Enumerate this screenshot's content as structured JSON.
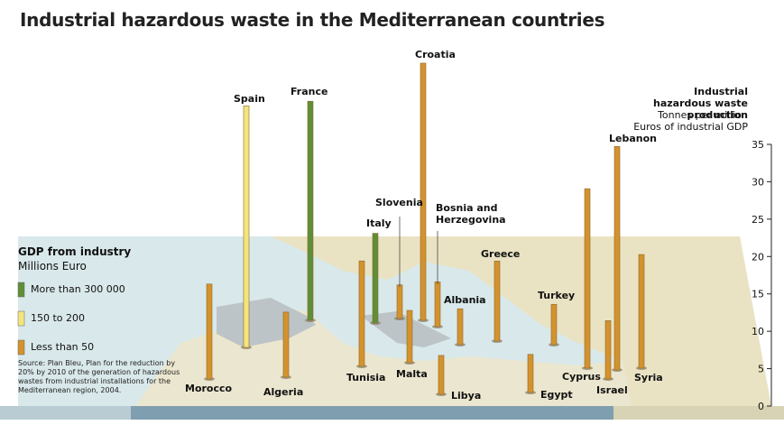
{
  "chart_data": {
    "type": "bar",
    "title": "Industrial hazardous waste in the Mediterranean countries",
    "y_axis_title": "Industrial hazardous waste production",
    "y_axis_subtitle": "Tonnes per million Euros of industrial GDP",
    "categories": [
      "Morocco",
      "Algeria",
      "Spain",
      "France",
      "Tunisia",
      "Italy",
      "Malta",
      "Slovenia",
      "Croatia",
      "Bosnia and Herzegovina",
      "Albania",
      "Greece",
      "Turkey",
      "Cyprus",
      "Lebanon",
      "Israel",
      "Syria",
      "Egypt",
      "Libya"
    ],
    "values": [
      12.7,
      8.7,
      32.3,
      29.3,
      14.1,
      12,
      7,
      4.5,
      34.4,
      6,
      4.8,
      10.7,
      5.4,
      24,
      29.9,
      7.8,
      15.2,
      5.1,
      5.2
    ],
    "colors": [
      "#d4922e",
      "#d4922e",
      "#f3e57e",
      "#5e8f38",
      "#d4922e",
      "#5e8f38",
      "#d4922e",
      "#d4922e",
      "#d4922e",
      "#d4922e",
      "#d4922e",
      "#d4922e",
      "#d4922e",
      "#d4922e",
      "#d4922e",
      "#d4922e",
      "#d4922e",
      "#d4922e",
      "#d4922e"
    ],
    "ylim": [
      0,
      35
    ],
    "yticks": [
      0,
      5,
      10,
      15,
      20,
      25,
      30,
      35
    ],
    "legend": {
      "title": "GDP from industry",
      "subtitle": "Millions Euro",
      "entries": [
        {
          "label": "More than 300 000",
          "color": "#5e8f38"
        },
        {
          "label": "150 to 200",
          "color": "#f3e57e"
        },
        {
          "label": "Less than 50",
          "color": "#d4922e"
        }
      ]
    },
    "source": "Source: Plan Bleu, Plan for the reduction by 20% by 2010 of the generation of hazardous wastes from industrial installations for the Mediterranean region, 2004."
  }
}
